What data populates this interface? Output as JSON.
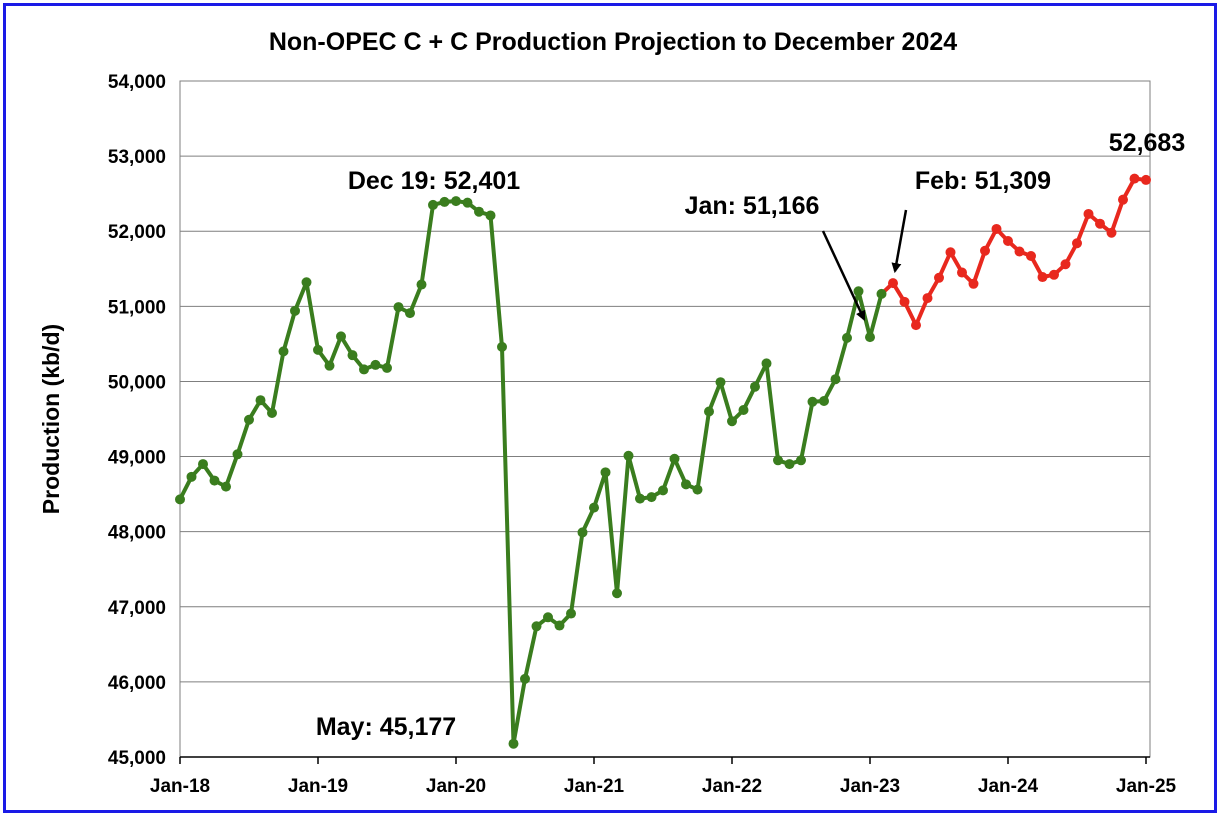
{
  "chart_data": {
    "type": "line",
    "title": "Non-OPEC C + C Production Projection to December 2024",
    "xlabel": "",
    "ylabel": "Production (kb/d)",
    "ylim": [
      45000,
      54000
    ],
    "y_ticks": [
      "45,000",
      "46,000",
      "47,000",
      "48,000",
      "49,000",
      "50,000",
      "51,000",
      "52,000",
      "53,000",
      "54,000"
    ],
    "x_ticks": [
      "Jan-18",
      "Jan-19",
      "Jan-20",
      "Jan-21",
      "Jan-22",
      "Jan-23",
      "Jan-24",
      "Jan-25"
    ],
    "grid": "horizontal",
    "start_month": "Jan-18",
    "series": [
      {
        "color": "#3a7d1e",
        "values": [
          48430,
          48730,
          48900,
          48680,
          48600,
          49030,
          49490,
          49750,
          49580,
          50400,
          50940,
          51320,
          50420,
          50210,
          50600,
          50350,
          50160,
          50220,
          50180,
          50990,
          50910,
          51290,
          52350,
          52390,
          52401,
          52380,
          52260,
          52210,
          50460,
          45177,
          46040,
          46740,
          46860,
          46750,
          46910,
          47990,
          48320,
          48790,
          47180,
          49010,
          48440,
          48460,
          48550,
          48970,
          48630,
          48560,
          49600,
          49990,
          49470,
          49620,
          49930,
          50240,
          48950,
          48900,
          48950,
          49730,
          49740,
          50030,
          50580,
          51200,
          50590,
          51166
        ]
      },
      {
        "color": "#e8281e",
        "start_index": 61,
        "values": [
          51166,
          51309,
          51060,
          50750,
          51110,
          51380,
          51720,
          51450,
          51300,
          51740,
          52030,
          51870,
          51730,
          51670,
          51390,
          51420,
          51560,
          51840,
          52230,
          52100,
          51980,
          52420,
          52700,
          52683
        ]
      }
    ],
    "annotations": [
      {
        "text": "Dec 19: 52,401"
      },
      {
        "text": "May: 45,177"
      },
      {
        "text": "Jan: 51,166"
      },
      {
        "text": "Feb: 51,309"
      },
      {
        "text": "52,683"
      }
    ]
  }
}
